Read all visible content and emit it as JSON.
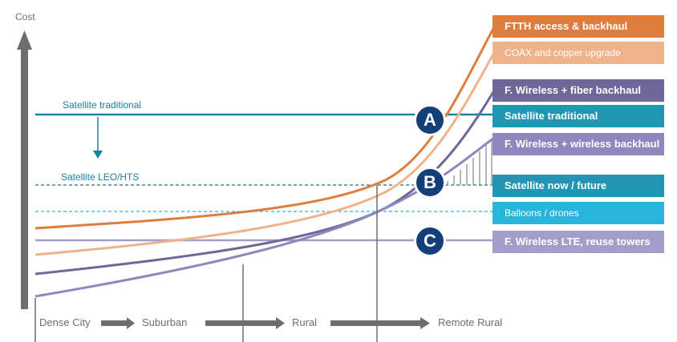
{
  "axis": {
    "y_label": "Cost",
    "x_stages": [
      "Dense City",
      "Suburban",
      "Rural",
      "Remote Rural"
    ]
  },
  "annotations": {
    "sat_traditional": "Satellite traditional",
    "sat_leo": "Satellite LEO/HTS"
  },
  "markers": [
    "A",
    "B",
    "C"
  ],
  "legend": [
    {
      "label": "FTTH access & backhaul",
      "color": "#df7d3e"
    },
    {
      "label": "COAX and copper upgrade",
      "color": "#efb38c"
    },
    {
      "label": "F. Wireless + fiber backhaul",
      "color": "#6e6797"
    },
    {
      "label": "Satellite traditional",
      "color": "#2096b3"
    },
    {
      "label": "F. Wireless + wireless backhaul",
      "color": "#8e86bd"
    },
    {
      "label": "Satellite now / future",
      "color": "#2096b3"
    },
    {
      "label": "Balloons / drones",
      "color": "#29b4dc"
    },
    {
      "label": "F. Wireless LTE, reuse towers",
      "color": "#a29dc9"
    }
  ],
  "colors": {
    "axis": "#6d6e71",
    "marker": "#143f79",
    "sat_line": "#1a82a1",
    "balloon_line": "#29b4dc"
  }
}
